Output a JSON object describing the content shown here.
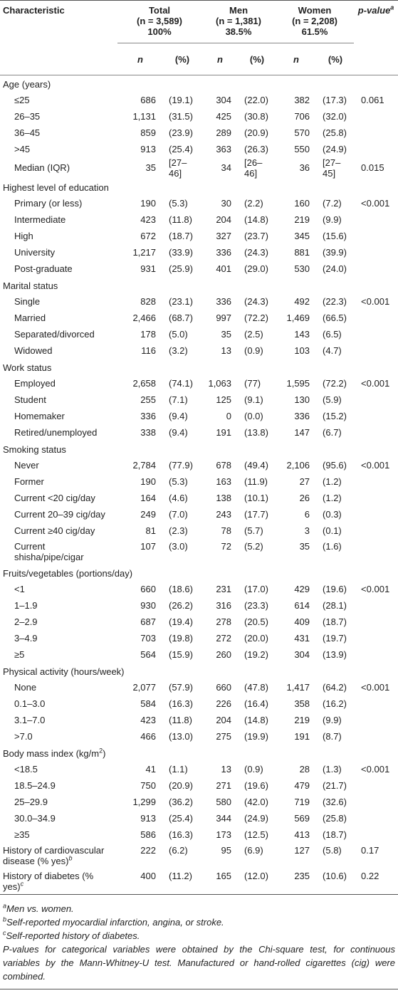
{
  "table": {
    "header": {
      "characteristic": "Characteristic",
      "groups": [
        {
          "name": "Total",
          "n": "(n = 3,589)",
          "share": "100%"
        },
        {
          "name": "Men",
          "n": "(n = 1,381)",
          "share": "38.5%"
        },
        {
          "name": "Women",
          "n": "(n = 2,208)",
          "share": "61.5%"
        }
      ],
      "p_value": "p-value",
      "p_value_sup": "a",
      "sub": [
        "n",
        "(%)"
      ]
    },
    "sections": [
      {
        "title": "Age (years)",
        "rows": [
          [
            "≤25",
            "686",
            "(19.1)",
            "304",
            "(22.0)",
            "382",
            "(17.3)",
            "0.061"
          ],
          [
            "26–35",
            "1,131",
            "(31.5)",
            "425",
            "(30.8)",
            "706",
            "(32.0)"
          ],
          [
            "36–45",
            "859",
            "(23.9)",
            "289",
            "(20.9)",
            "570",
            "(25.8)"
          ],
          [
            ">45",
            "913",
            "(25.4)",
            "363",
            "(26.3)",
            "550",
            "(24.9)"
          ],
          [
            "Median (IQR)",
            "35",
            "[27–46]",
            "34",
            "[26–46]",
            "36",
            "[27–45]",
            "0.015"
          ]
        ]
      },
      {
        "title": "Highest level of education",
        "rows": [
          [
            "Primary (or less)",
            "190",
            "(5.3)",
            "30",
            "(2.2)",
            "160",
            "(7.2)",
            "<0.001"
          ],
          [
            "Intermediate",
            "423",
            "(11.8)",
            "204",
            "(14.8)",
            "219",
            "(9.9)"
          ],
          [
            "High",
            "672",
            "(18.7)",
            "327",
            "(23.7)",
            "345",
            "(15.6)"
          ],
          [
            "University",
            "1,217",
            "(33.9)",
            "336",
            "(24.3)",
            "881",
            "(39.9)"
          ],
          [
            "Post-graduate",
            "931",
            "(25.9)",
            "401",
            "(29.0)",
            "530",
            "(24.0)"
          ]
        ]
      },
      {
        "title": "Marital status",
        "rows": [
          [
            "Single",
            "828",
            "(23.1)",
            "336",
            "(24.3)",
            "492",
            "(22.3)",
            "<0.001"
          ],
          [
            "Married",
            "2,466",
            "(68.7)",
            "997",
            "(72.2)",
            "1,469",
            "(66.5)"
          ],
          [
            "Separated/divorced",
            "178",
            "(5.0)",
            "35",
            "(2.5)",
            "143",
            "(6.5)"
          ],
          [
            "Widowed",
            "116",
            "(3.2)",
            "13",
            "(0.9)",
            "103",
            "(4.7)"
          ]
        ]
      },
      {
        "title": "Work status",
        "rows": [
          [
            "Employed",
            "2,658",
            "(74.1)",
            "1,063",
            "(77)",
            "1,595",
            "(72.2)",
            "<0.001"
          ],
          [
            "Student",
            "255",
            "(7.1)",
            "125",
            "(9.1)",
            "130",
            "(5.9)"
          ],
          [
            "Homemaker",
            "336",
            "(9.4)",
            "0",
            "(0.0)",
            "336",
            "(15.2)"
          ],
          [
            "Retired/unemployed",
            "338",
            "(9.4)",
            "191",
            "(13.8)",
            "147",
            "(6.7)"
          ]
        ]
      },
      {
        "title": "Smoking status",
        "rows": [
          [
            "Never",
            "2,784",
            "(77.9)",
            "678",
            "(49.4)",
            "2,106",
            "(95.6)",
            "<0.001"
          ],
          [
            "Former",
            "190",
            "(5.3)",
            "163",
            "(11.9)",
            "27",
            "(1.2)"
          ],
          [
            "Current <20 cig/day",
            "164",
            "(4.6)",
            "138",
            "(10.1)",
            "26",
            "(1.2)"
          ],
          [
            "Current 20–39 cig/day",
            "249",
            "(7.0)",
            "243",
            "(17.7)",
            "6",
            "(0.3)"
          ],
          [
            "Current ≥40 cig/day",
            "81",
            "(2.3)",
            "78",
            "(5.7)",
            "3",
            "(0.1)"
          ],
          [
            "Current shisha/pipe/cigar",
            "107",
            "(3.0)",
            "72",
            "(5.2)",
            "35",
            "(1.6)"
          ]
        ]
      },
      {
        "title": "Fruits/vegetables (portions/day)",
        "rows": [
          [
            "<1",
            "660",
            "(18.6)",
            "231",
            "(17.0)",
            "429",
            "(19.6)",
            "<0.001"
          ],
          [
            "1–1.9",
            "930",
            "(26.2)",
            "316",
            "(23.3)",
            "614",
            "(28.1)"
          ],
          [
            "2–2.9",
            "687",
            "(19.4)",
            "278",
            "(20.5)",
            "409",
            "(18.7)"
          ],
          [
            "3–4.9",
            "703",
            "(19.8)",
            "272",
            "(20.0)",
            "431",
            "(19.7)"
          ],
          [
            "≥5",
            "564",
            "(15.9)",
            "260",
            "(19.2)",
            "304",
            "(13.9)"
          ]
        ]
      },
      {
        "title": "Physical activity (hours/week)",
        "rows": [
          [
            "None",
            "2,077",
            "(57.9)",
            "660",
            "(47.8)",
            "1,417",
            "(64.2)",
            "<0.001"
          ],
          [
            "0.1–3.0",
            "584",
            "(16.3)",
            "226",
            "(16.4)",
            "358",
            "(16.2)"
          ],
          [
            "3.1–7.0",
            "423",
            "(11.8)",
            "204",
            "(14.8)",
            "219",
            "(9.9)"
          ],
          [
            ">7.0",
            "466",
            "(13.0)",
            "275",
            "(19.9)",
            "191",
            "(8.7)"
          ]
        ]
      },
      {
        "title": "Body mass index (kg/m",
        "title_sup": "2",
        "title_end": ")",
        "rows": [
          [
            "<18.5",
            "41",
            "(1.1)",
            "13",
            "(0.9)",
            "28",
            "(1.3)",
            "<0.001"
          ],
          [
            "18.5–24.9",
            "750",
            "(20.9)",
            "271",
            "(19.6)",
            "479",
            "(21.7)"
          ],
          [
            "25–29.9",
            "1,299",
            "(36.2)",
            "580",
            "(42.0)",
            "719",
            "(32.6)"
          ],
          [
            "30.0–34.9",
            "913",
            "(25.4)",
            "344",
            "(24.9)",
            "569",
            "(25.8)"
          ],
          [
            "≥35",
            "586",
            "(16.3)",
            "173",
            "(12.5)",
            "413",
            "(18.7)"
          ]
        ]
      }
    ],
    "history": [
      {
        "label": "History of cardiovascular disease (% yes)",
        "sup": "b",
        "cells": [
          "222",
          "(6.2)",
          "95",
          "(6.9)",
          "127",
          "(5.8)",
          "0.17"
        ]
      },
      {
        "label": "History of diabetes (% yes)",
        "sup": "c",
        "cells": [
          "400",
          "(11.2)",
          "165",
          "(12.0)",
          "235",
          "(10.6)",
          "0.22"
        ]
      }
    ]
  },
  "footnotes": [
    {
      "mark": "a",
      "text": "Men vs. women."
    },
    {
      "mark": "b",
      "text": "Self-reported myocardial infarction, angina, or stroke."
    },
    {
      "mark": "c",
      "text": "Self-reported history of diabetes."
    }
  ],
  "note": "P-values for categorical variables were obtained by the Chi-square test, for continuous variables by the Mann-Whitney-U test. Manufactured or hand-rolled cigarettes (cig) were combined."
}
